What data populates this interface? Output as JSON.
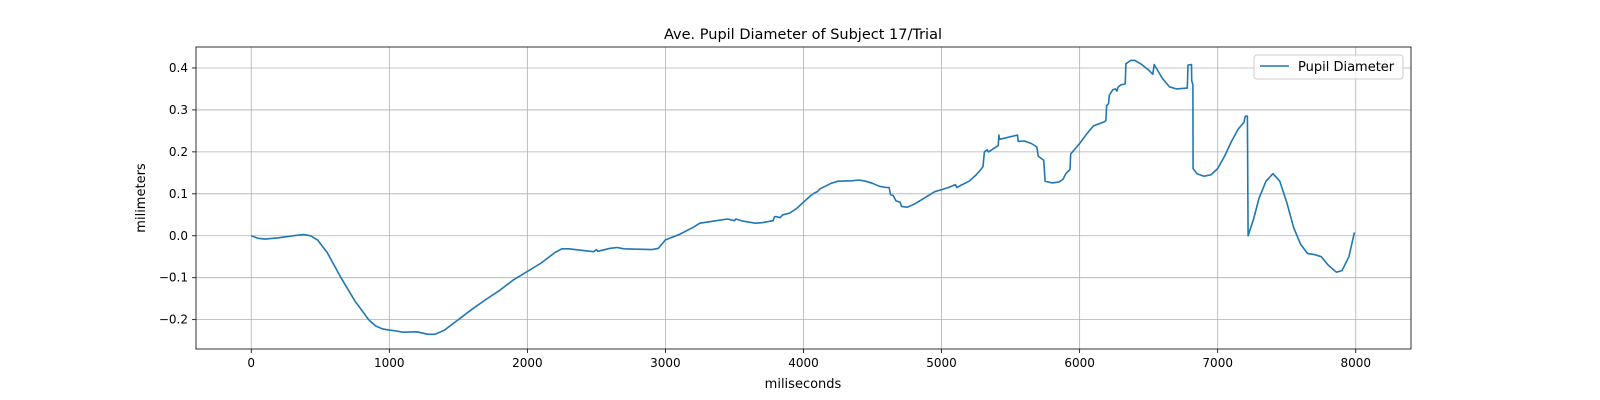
{
  "chart_data": {
    "type": "line",
    "title": "Ave. Pupil Diameter of Subject 17/Trial",
    "xlabel": "miliseconds",
    "ylabel": "milimeters",
    "xlim": [
      -400,
      8400
    ],
    "ylim": [
      -0.27,
      0.45
    ],
    "xticks": [
      0,
      1000,
      2000,
      3000,
      4000,
      5000,
      6000,
      7000,
      8000
    ],
    "yticks": [
      -0.2,
      -0.1,
      0.0,
      0.1,
      0.2,
      0.3,
      0.4
    ],
    "grid": true,
    "legend_position": "upper right",
    "series": [
      {
        "name": "Pupil Diameter",
        "color": "#1f77b4",
        "points": [
          [
            0,
            0.0
          ],
          [
            50,
            -0.006
          ],
          [
            100,
            -0.008
          ],
          [
            200,
            -0.005
          ],
          [
            300,
            0.0
          ],
          [
            380,
            0.003
          ],
          [
            430,
            0.0
          ],
          [
            480,
            -0.01
          ],
          [
            550,
            -0.04
          ],
          [
            650,
            -0.1
          ],
          [
            750,
            -0.155
          ],
          [
            850,
            -0.2
          ],
          [
            900,
            -0.215
          ],
          [
            950,
            -0.222
          ],
          [
            1000,
            -0.225
          ],
          [
            1050,
            -0.227
          ],
          [
            1100,
            -0.23
          ],
          [
            1200,
            -0.229
          ],
          [
            1280,
            -0.235
          ],
          [
            1330,
            -0.235
          ],
          [
            1400,
            -0.225
          ],
          [
            1500,
            -0.2
          ],
          [
            1600,
            -0.175
          ],
          [
            1700,
            -0.152
          ],
          [
            1800,
            -0.13
          ],
          [
            1900,
            -0.105
          ],
          [
            2000,
            -0.085
          ],
          [
            2100,
            -0.065
          ],
          [
            2200,
            -0.04
          ],
          [
            2250,
            -0.031
          ],
          [
            2300,
            -0.031
          ],
          [
            2400,
            -0.035
          ],
          [
            2480,
            -0.038
          ],
          [
            2500,
            -0.033
          ],
          [
            2510,
            -0.037
          ],
          [
            2600,
            -0.03
          ],
          [
            2650,
            -0.028
          ],
          [
            2700,
            -0.031
          ],
          [
            2800,
            -0.032
          ],
          [
            2900,
            -0.033
          ],
          [
            2950,
            -0.03
          ],
          [
            3000,
            -0.01
          ],
          [
            3100,
            0.003
          ],
          [
            3200,
            0.02
          ],
          [
            3250,
            0.03
          ],
          [
            3350,
            0.035
          ],
          [
            3450,
            0.04
          ],
          [
            3500,
            0.036
          ],
          [
            3510,
            0.04
          ],
          [
            3560,
            0.035
          ],
          [
            3650,
            0.03
          ],
          [
            3700,
            0.031
          ],
          [
            3780,
            0.036
          ],
          [
            3790,
            0.045
          ],
          [
            3800,
            0.046
          ],
          [
            3830,
            0.043
          ],
          [
            3850,
            0.05
          ],
          [
            3900,
            0.054
          ],
          [
            3950,
            0.065
          ],
          [
            4000,
            0.08
          ],
          [
            4050,
            0.095
          ],
          [
            4080,
            0.102
          ],
          [
            4100,
            0.105
          ],
          [
            4120,
            0.112
          ],
          [
            4200,
            0.125
          ],
          [
            4250,
            0.13
          ],
          [
            4350,
            0.131
          ],
          [
            4400,
            0.133
          ],
          [
            4450,
            0.13
          ],
          [
            4500,
            0.125
          ],
          [
            4550,
            0.118
          ],
          [
            4600,
            0.115
          ],
          [
            4620,
            0.115
          ],
          [
            4630,
            0.098
          ],
          [
            4650,
            0.096
          ],
          [
            4670,
            0.083
          ],
          [
            4700,
            0.08
          ],
          [
            4710,
            0.07
          ],
          [
            4750,
            0.068
          ],
          [
            4800,
            0.075
          ],
          [
            4900,
            0.095
          ],
          [
            4950,
            0.105
          ],
          [
            5000,
            0.11
          ],
          [
            5050,
            0.115
          ],
          [
            5100,
            0.122
          ],
          [
            5110,
            0.115
          ],
          [
            5150,
            0.122
          ],
          [
            5200,
            0.13
          ],
          [
            5250,
            0.145
          ],
          [
            5290,
            0.16
          ],
          [
            5300,
            0.165
          ],
          [
            5310,
            0.2
          ],
          [
            5330,
            0.205
          ],
          [
            5340,
            0.2
          ],
          [
            5410,
            0.215
          ],
          [
            5415,
            0.24
          ],
          [
            5420,
            0.23
          ],
          [
            5550,
            0.24
          ],
          [
            5555,
            0.225
          ],
          [
            5600,
            0.226
          ],
          [
            5650,
            0.22
          ],
          [
            5690,
            0.212
          ],
          [
            5700,
            0.19
          ],
          [
            5740,
            0.18
          ],
          [
            5750,
            0.13
          ],
          [
            5800,
            0.126
          ],
          [
            5850,
            0.128
          ],
          [
            5880,
            0.135
          ],
          [
            5900,
            0.148
          ],
          [
            5930,
            0.158
          ],
          [
            5935,
            0.195
          ],
          [
            6000,
            0.22
          ],
          [
            6050,
            0.242
          ],
          [
            6100,
            0.262
          ],
          [
            6180,
            0.272
          ],
          [
            6190,
            0.275
          ],
          [
            6195,
            0.31
          ],
          [
            6210,
            0.315
          ],
          [
            6215,
            0.335
          ],
          [
            6240,
            0.348
          ],
          [
            6260,
            0.35
          ],
          [
            6270,
            0.345
          ],
          [
            6280,
            0.355
          ],
          [
            6300,
            0.36
          ],
          [
            6330,
            0.362
          ],
          [
            6335,
            0.41
          ],
          [
            6370,
            0.418
          ],
          [
            6400,
            0.418
          ],
          [
            6450,
            0.408
          ],
          [
            6500,
            0.395
          ],
          [
            6530,
            0.385
          ],
          [
            6540,
            0.408
          ],
          [
            6600,
            0.375
          ],
          [
            6650,
            0.355
          ],
          [
            6700,
            0.35
          ],
          [
            6780,
            0.352
          ],
          [
            6785,
            0.407
          ],
          [
            6810,
            0.408
          ],
          [
            6812,
            0.37
          ],
          [
            6820,
            0.36
          ],
          [
            6822,
            0.16
          ],
          [
            6850,
            0.148
          ],
          [
            6900,
            0.142
          ],
          [
            6950,
            0.145
          ],
          [
            7000,
            0.16
          ],
          [
            7050,
            0.19
          ],
          [
            7100,
            0.225
          ],
          [
            7150,
            0.255
          ],
          [
            7190,
            0.27
          ],
          [
            7200,
            0.285
          ],
          [
            7215,
            0.285
          ],
          [
            7220,
            0.0
          ],
          [
            7260,
            0.04
          ],
          [
            7300,
            0.09
          ],
          [
            7350,
            0.13
          ],
          [
            7400,
            0.148
          ],
          [
            7450,
            0.13
          ],
          [
            7500,
            0.08
          ],
          [
            7550,
            0.02
          ],
          [
            7600,
            -0.02
          ],
          [
            7650,
            -0.042
          ],
          [
            7700,
            -0.045
          ],
          [
            7750,
            -0.05
          ],
          [
            7800,
            -0.07
          ],
          [
            7860,
            -0.087
          ],
          [
            7900,
            -0.083
          ],
          [
            7950,
            -0.05
          ],
          [
            7990,
            0.008
          ]
        ]
      }
    ]
  }
}
